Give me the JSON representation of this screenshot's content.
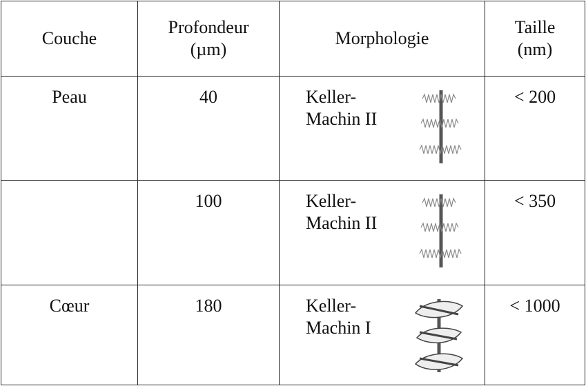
{
  "table": {
    "header": [
      "Couche",
      "Profondeur\n(µm)",
      "Morphologie",
      "Taille\n(nm)"
    ],
    "rows": [
      [
        "Peau",
        "40",
        "Keller-\nMachin II",
        "< 200"
      ],
      [
        null,
        "100",
        "Keller-\nMachin II",
        "< 350"
      ],
      [
        "Cœur",
        "180",
        "Keller-\nMachin I",
        "< 1000"
      ]
    ]
  }
}
